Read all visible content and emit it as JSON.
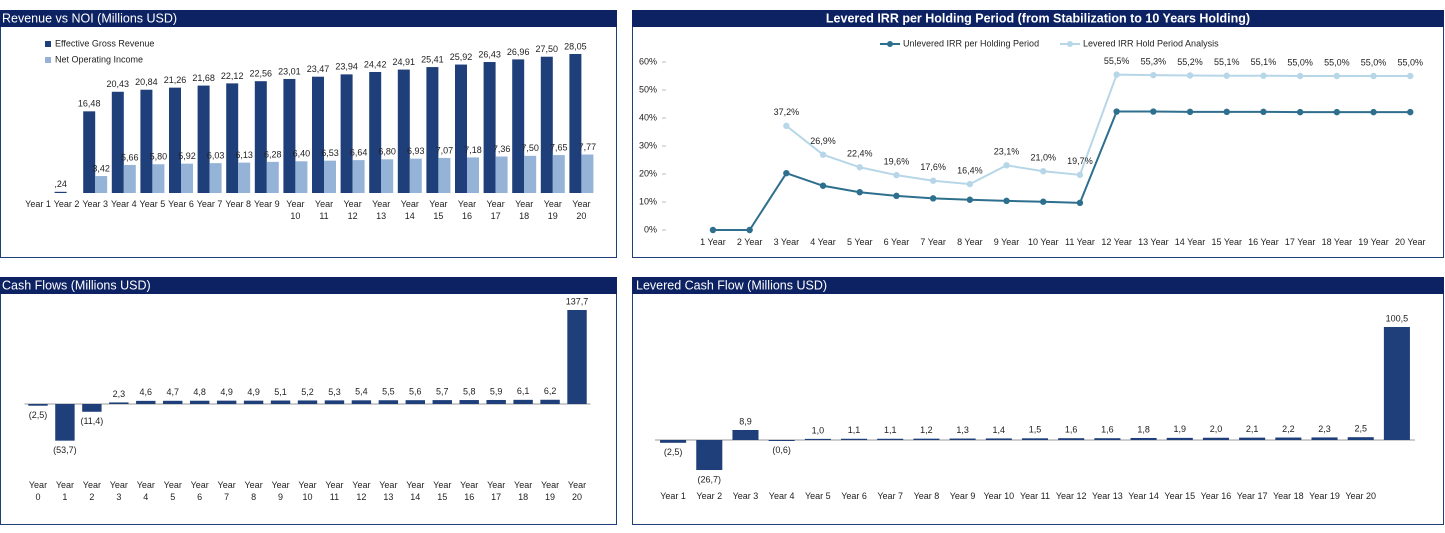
{
  "chart_data": [
    {
      "type": "bar",
      "title": "Revenue vs NOI (Millions USD)",
      "categories": [
        "Year 1",
        "Year 2",
        "Year 3",
        "Year 4",
        "Year 5",
        "Year 6",
        "Year 7",
        "Year 8",
        "Year 9",
        "Year 10",
        "Year 11",
        "Year 12",
        "Year 13",
        "Year 14",
        "Year 15",
        "Year 16",
        "Year 17",
        "Year 18",
        "Year 19",
        "Year 20"
      ],
      "series": [
        {
          "name": "Effective Gross Revenue",
          "color": "#1f3f7a",
          "values": [
            null,
            0.24,
            16.48,
            20.43,
            20.84,
            21.26,
            21.68,
            22.12,
            22.56,
            23.01,
            23.47,
            23.94,
            24.42,
            24.91,
            25.41,
            25.92,
            26.43,
            26.96,
            27.5,
            28.05
          ],
          "value_labels": [
            null,
            ",24",
            "16,48",
            "20,43",
            "20,84",
            "21,26",
            "21,68",
            "22,12",
            "22,56",
            "23,01",
            "23,47",
            "23,94",
            "24,42",
            "24,91",
            "25,41",
            "25,92",
            "26,43",
            "26,96",
            "27,50",
            "28,05"
          ]
        },
        {
          "name": "Net Operating Income",
          "color": "#95b3d7",
          "values": [
            null,
            null,
            3.42,
            5.66,
            5.8,
            5.92,
            6.03,
            6.13,
            6.28,
            6.4,
            6.53,
            6.64,
            6.8,
            6.93,
            7.07,
            7.18,
            7.36,
            7.5,
            7.65,
            7.77
          ],
          "value_labels": [
            null,
            null,
            "3,42",
            "5,66",
            "5,80",
            "5,92",
            "6,03",
            "6,13",
            "6,28",
            "6,40",
            "6,53",
            "6,64",
            "6,80",
            "6,93",
            "7,07",
            "7,18",
            "7,36",
            "7,50",
            "7,65",
            "7,77"
          ]
        }
      ]
    },
    {
      "type": "line",
      "title": "Levered IRR per Holding Period (from Stabilization to 10 Years Holding)",
      "categories": [
        "1 Year",
        "2 Year",
        "3 Year",
        "4 Year",
        "5 Year",
        "6 Year",
        "7 Year",
        "8 Year",
        "9 Year",
        "10 Year",
        "11 Year",
        "12 Year",
        "13 Year",
        "14 Year",
        "15 Year",
        "16 Year",
        "17 Year",
        "18 Year",
        "19 Year",
        "20 Year"
      ],
      "ylim": [
        0,
        60
      ],
      "yticks": [
        {
          "value": 0,
          "label": "0%"
        },
        {
          "value": 10,
          "label": "10%"
        },
        {
          "value": 20,
          "label": "20%"
        },
        {
          "value": 30,
          "label": "30%"
        },
        {
          "value": 40,
          "label": "40%"
        },
        {
          "value": 50,
          "label": "50%"
        },
        {
          "value": 60,
          "label": "60%"
        }
      ],
      "grid": false,
      "series": [
        {
          "name": "Unlevered IRR per Holding Period",
          "color": "#2e6f8e",
          "values": [
            0,
            0,
            20.3,
            15.8,
            13.5,
            12.2,
            11.3,
            10.8,
            10.4,
            10.1,
            9.7,
            42.3,
            42.3,
            42.2,
            42.2,
            42.2,
            42.1,
            42.1,
            42.1,
            42.1
          ]
        },
        {
          "name": "Levered IRR Hold Period Analysis",
          "color": "#b7d7e8",
          "values": [
            null,
            null,
            37.2,
            26.9,
            22.4,
            19.6,
            17.6,
            16.4,
            23.1,
            21.0,
            19.7,
            55.5,
            55.3,
            55.2,
            55.1,
            55.1,
            55.0,
            55.0,
            55.0,
            55.0
          ],
          "value_labels": [
            null,
            null,
            "37,2%",
            "26,9%",
            "22,4%",
            "19,6%",
            "17,6%",
            "16,4%",
            "23,1%",
            "21,0%",
            "19,7%",
            "55,5%",
            "55,3%",
            "55,2%",
            "55,1%",
            "55,1%",
            "55,0%",
            "55,0%",
            "55,0%",
            "55,0%"
          ]
        }
      ]
    },
    {
      "type": "bar",
      "title": "Cash Flows (Millions USD)",
      "categories": [
        "Year 0",
        "Year 1",
        "Year 2",
        "Year 3",
        "Year 4",
        "Year 5",
        "Year 6",
        "Year 7",
        "Year 8",
        "Year 9",
        "Year 10",
        "Year 11",
        "Year 12",
        "Year 13",
        "Year 14",
        "Year 15",
        "Year 16",
        "Year 17",
        "Year 18",
        "Year 19",
        "Year 20"
      ],
      "color": "#1f3f7a",
      "values": [
        -2.5,
        -53.7,
        -11.4,
        2.3,
        4.6,
        4.7,
        4.8,
        4.9,
        4.9,
        5.1,
        5.2,
        5.3,
        5.4,
        5.5,
        5.6,
        5.7,
        5.8,
        5.9,
        6.1,
        6.2,
        137.7
      ],
      "value_labels": [
        "(2,5)",
        "(53,7)",
        "(11,4)",
        "2,3",
        "4,6",
        "4,7",
        "4,8",
        "4,9",
        "4,9",
        "5,1",
        "5,2",
        "5,3",
        "5,4",
        "5,5",
        "5,6",
        "5,7",
        "5,8",
        "5,9",
        "6,1",
        "6,2",
        "137,7"
      ]
    },
    {
      "type": "bar",
      "title": "Levered Cash Flow (Millions USD)",
      "categories": [
        "Year 1",
        "Year 2",
        "Year 3",
        "Year 4",
        "Year 5",
        "Year 6",
        "Year 7",
        "Year 8",
        "Year 9",
        "Year 10",
        "Year 11",
        "Year 12",
        "Year 13",
        "Year 14",
        "Year 15",
        "Year 16",
        "Year 17",
        "Year 18",
        "Year 19",
        "Year 20",
        null
      ],
      "color": "#1f3f7a",
      "values": [
        -2.5,
        -26.7,
        8.9,
        -0.6,
        1.0,
        1.1,
        1.1,
        1.2,
        1.3,
        1.4,
        1.5,
        1.6,
        1.6,
        1.8,
        1.9,
        2.0,
        2.1,
        2.2,
        2.3,
        2.5,
        100.5
      ],
      "value_labels": [
        "(2,5)",
        "(26,7)",
        "8,9",
        "(0,6)",
        "1,0",
        "1,1",
        "1,1",
        "1,2",
        "1,3",
        "1,4",
        "1,5",
        "1,6",
        "1,6",
        "1,8",
        "1,9",
        "2,0",
        "2,1",
        "2,2",
        "2,3",
        "2,5",
        "100,5"
      ]
    }
  ]
}
